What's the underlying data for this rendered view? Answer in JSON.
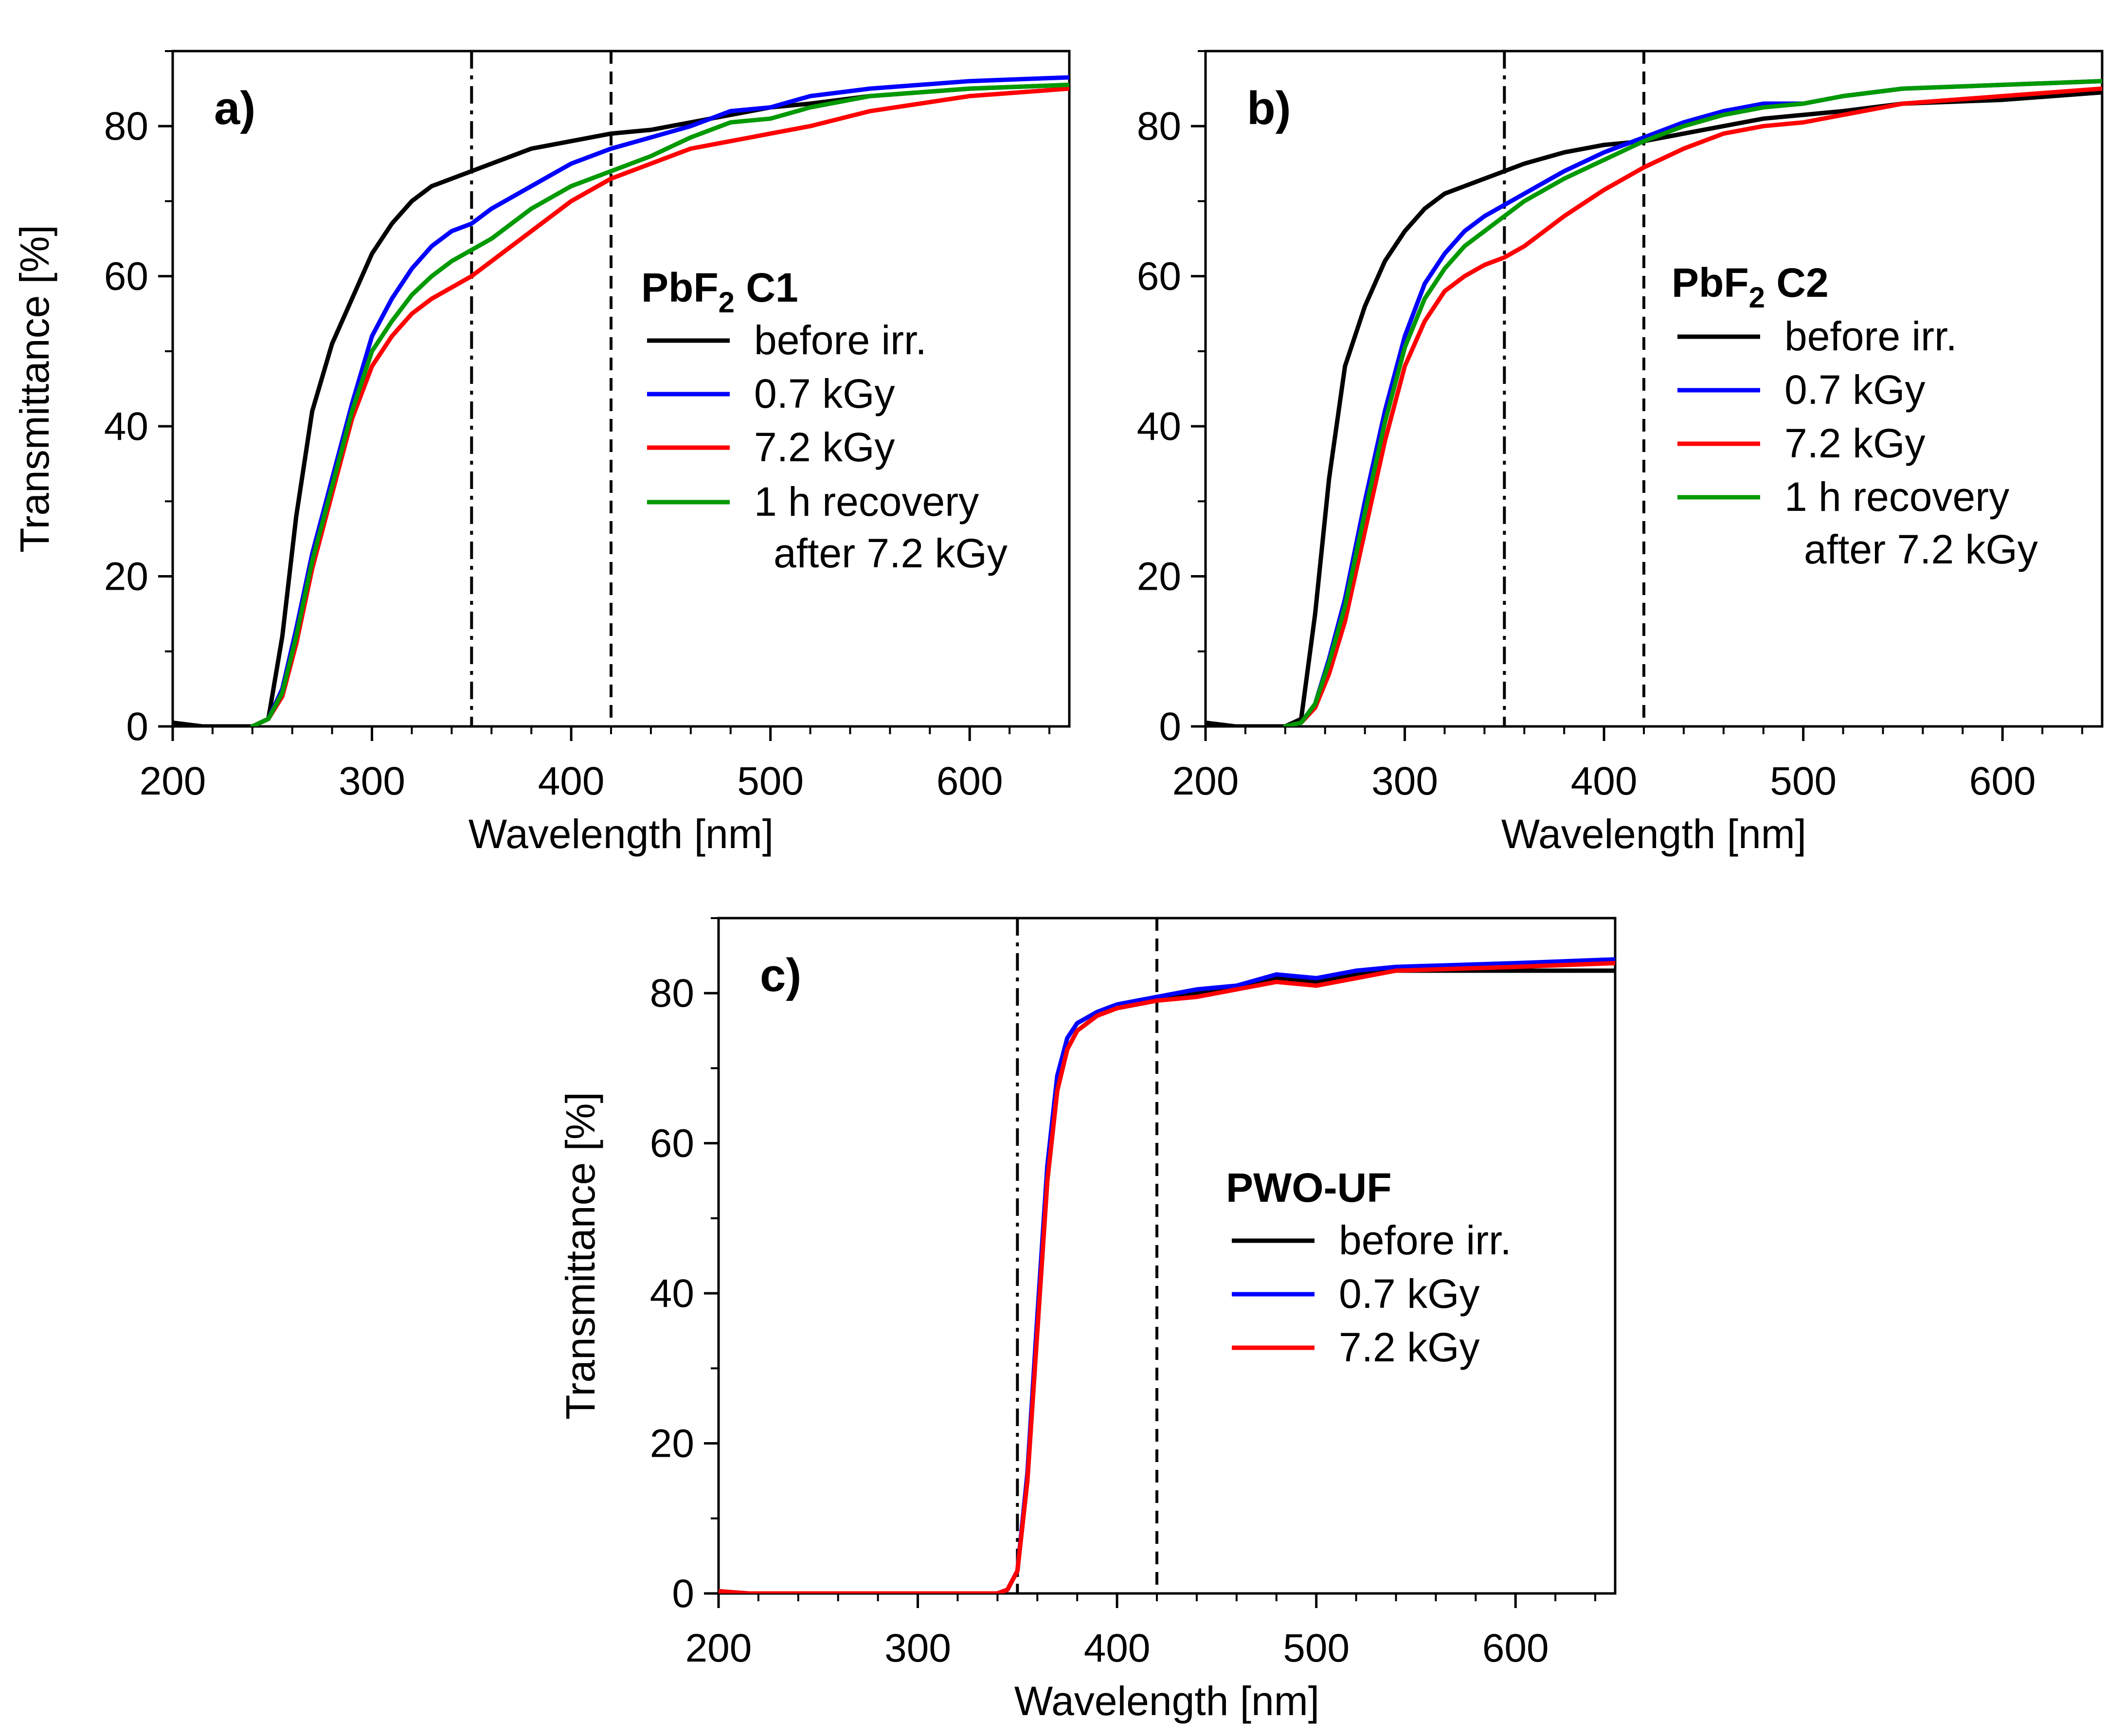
{
  "chart_data": [
    {
      "type": "line",
      "panel": "a)",
      "title_main": "PbF",
      "title_sub": "2",
      "title_rest": " C1",
      "xlabel": "Wavelength [nm]",
      "ylabel": "Transmittance [%]",
      "xlim": [
        200,
        650
      ],
      "ylim": [
        0,
        90
      ],
      "xticks": [
        200,
        300,
        400,
        500,
        600
      ],
      "yticks": [
        0,
        20,
        40,
        60,
        80
      ],
      "vlines": [
        {
          "x": 350,
          "style": "dashdot"
        },
        {
          "x": 420,
          "style": "dashed"
        }
      ],
      "legend": [
        "before irr.",
        "0.7 kGy",
        "7.2 kGy",
        "1 h recovery",
        "after 7.2 kGy"
      ],
      "series": [
        {
          "name": "before irr.",
          "color": "#000000",
          "x": [
            200,
            215,
            240,
            248,
            255,
            262,
            270,
            280,
            290,
            300,
            310,
            320,
            330,
            340,
            350,
            360,
            380,
            400,
            420,
            440,
            460,
            480,
            500,
            520,
            550,
            600,
            650
          ],
          "y": [
            0.5,
            0,
            0,
            1,
            12,
            28,
            42,
            51,
            57,
            63,
            67,
            70,
            72,
            73,
            74,
            75,
            77,
            78,
            79,
            79.5,
            80.5,
            81.5,
            82.5,
            83,
            84,
            85,
            85.5
          ]
        },
        {
          "name": "0.7 kGy",
          "color": "#0000ff",
          "x": [
            240,
            248,
            255,
            262,
            270,
            280,
            290,
            300,
            310,
            320,
            330,
            340,
            350,
            360,
            380,
            400,
            420,
            440,
            460,
            480,
            500,
            520,
            550,
            600,
            650
          ],
          "y": [
            0,
            1,
            5,
            13,
            23,
            33,
            43,
            52,
            57,
            61,
            64,
            66,
            67,
            69,
            72,
            75,
            77,
            78.5,
            80,
            82,
            82.5,
            84,
            85,
            86,
            86.5
          ]
        },
        {
          "name": "7.2 kGy",
          "color": "#ff0000",
          "x": [
            240,
            248,
            255,
            262,
            270,
            280,
            290,
            300,
            310,
            320,
            330,
            340,
            350,
            360,
            380,
            400,
            420,
            440,
            460,
            480,
            500,
            520,
            550,
            600,
            650
          ],
          "y": [
            0,
            1,
            4,
            11,
            21,
            31,
            41,
            48,
            52,
            55,
            57,
            58.5,
            60,
            62,
            66,
            70,
            73,
            75,
            77,
            78,
            79,
            80,
            82,
            84,
            85
          ]
        },
        {
          "name": "1 h recovery after 7.2 kGy",
          "color": "#009900",
          "x": [
            240,
            248,
            255,
            262,
            270,
            280,
            290,
            300,
            310,
            320,
            330,
            340,
            350,
            360,
            380,
            400,
            420,
            440,
            460,
            480,
            500,
            520,
            550,
            600,
            650
          ],
          "y": [
            0,
            1,
            4.5,
            12,
            22,
            32,
            42,
            50,
            54,
            57.5,
            60,
            62,
            63.5,
            65,
            69,
            72,
            74,
            76,
            78.5,
            80.5,
            81,
            82.5,
            84,
            85,
            85.5
          ]
        }
      ]
    },
    {
      "type": "line",
      "panel": "b)",
      "title_main": "PbF",
      "title_sub": "2",
      "title_rest": " C2",
      "xlabel": "Wavelength [nm]",
      "ylabel": "",
      "xlim": [
        200,
        650
      ],
      "ylim": [
        0,
        90
      ],
      "xticks": [
        200,
        300,
        400,
        500,
        600
      ],
      "yticks": [
        0,
        20,
        40,
        60,
        80
      ],
      "vlines": [
        {
          "x": 350,
          "style": "dashdot"
        },
        {
          "x": 420,
          "style": "dashed"
        }
      ],
      "legend": [
        "before irr.",
        "0.7 kGy",
        "7.2 kGy",
        "1 h recovery",
        "after 7.2 kGy"
      ],
      "series": [
        {
          "name": "before irr.",
          "color": "#000000",
          "x": [
            200,
            215,
            240,
            248,
            255,
            262,
            270,
            280,
            290,
            300,
            310,
            320,
            330,
            340,
            350,
            360,
            380,
            400,
            420,
            440,
            460,
            480,
            500,
            520,
            550,
            600,
            650
          ],
          "y": [
            0.5,
            0,
            0,
            1,
            15,
            33,
            48,
            56,
            62,
            66,
            69,
            71,
            72,
            73,
            74,
            75,
            76.5,
            77.5,
            78,
            79,
            80,
            81,
            81.5,
            82,
            83,
            83.5,
            84.5
          ]
        },
        {
          "name": "0.7 kGy",
          "color": "#0000ff",
          "x": [
            240,
            248,
            255,
            262,
            270,
            280,
            290,
            300,
            310,
            320,
            330,
            340,
            350,
            360,
            380,
            400,
            420,
            440,
            460,
            480,
            500,
            520,
            550,
            600,
            650
          ],
          "y": [
            0,
            0.5,
            3,
            9,
            17,
            30,
            42,
            52,
            59,
            63,
            66,
            68,
            69.5,
            71,
            74,
            76.5,
            78.5,
            80.5,
            82,
            83,
            83,
            84,
            85,
            85.5,
            86
          ]
        },
        {
          "name": "7.2 kGy",
          "color": "#ff0000",
          "x": [
            240,
            248,
            255,
            262,
            270,
            280,
            290,
            300,
            310,
            320,
            330,
            340,
            350,
            360,
            380,
            400,
            420,
            440,
            460,
            480,
            500,
            520,
            550,
            600,
            650
          ],
          "y": [
            0,
            0.5,
            2.5,
            7,
            14,
            26,
            38,
            48,
            54,
            58,
            60,
            61.5,
            62.5,
            64,
            68,
            71.5,
            74.5,
            77,
            79,
            80,
            80.5,
            81.5,
            83,
            84,
            85
          ]
        },
        {
          "name": "1 h recovery after 7.2 kGy",
          "color": "#009900",
          "x": [
            240,
            248,
            255,
            262,
            270,
            280,
            290,
            300,
            310,
            320,
            330,
            340,
            350,
            360,
            380,
            400,
            420,
            440,
            460,
            480,
            500,
            520,
            550,
            600,
            650
          ],
          "y": [
            0,
            0.5,
            3,
            8.5,
            16,
            28.5,
            40.5,
            50.5,
            57,
            61,
            64,
            66,
            68,
            70,
            73,
            75.5,
            78,
            80,
            81.5,
            82.5,
            83,
            84,
            85,
            85.5,
            86
          ]
        }
      ]
    },
    {
      "type": "line",
      "panel": "c)",
      "title_main": "PWO-UF",
      "title_sub": "",
      "title_rest": "",
      "xlabel": "Wavelength [nm]",
      "ylabel": "Transmittance [%]",
      "xlim": [
        200,
        650
      ],
      "ylim": [
        0,
        90
      ],
      "xticks": [
        200,
        300,
        400,
        500,
        600
      ],
      "yticks": [
        0,
        20,
        40,
        60,
        80
      ],
      "vlines": [
        {
          "x": 350,
          "style": "dashdot"
        },
        {
          "x": 420,
          "style": "dashed"
        }
      ],
      "legend": [
        "before irr.",
        "0.7 kGy",
        "7.2 kGy"
      ],
      "series": [
        {
          "name": "before irr.",
          "color": "#000000",
          "x": [
            200,
            215,
            240,
            300,
            340,
            345,
            350,
            355,
            360,
            365,
            370,
            375,
            380,
            390,
            400,
            420,
            440,
            460,
            480,
            500,
            520,
            540,
            600,
            650
          ],
          "y": [
            0.3,
            0,
            0,
            0,
            0,
            0.5,
            3,
            15,
            35,
            55,
            67,
            72.5,
            75,
            77,
            78,
            79,
            80,
            80.5,
            82,
            81.5,
            82.5,
            83,
            83,
            83
          ]
        },
        {
          "name": "0.7 kGy",
          "color": "#0000ff",
          "x": [
            200,
            215,
            240,
            300,
            340,
            345,
            350,
            355,
            360,
            365,
            370,
            375,
            380,
            390,
            400,
            420,
            440,
            460,
            480,
            500,
            520,
            540,
            600,
            650
          ],
          "y": [
            0.3,
            0,
            0,
            0,
            0,
            0.5,
            3,
            16,
            37,
            57,
            69,
            74,
            76,
            77.5,
            78.5,
            79.5,
            80.5,
            81,
            82.5,
            82,
            83,
            83.5,
            84,
            84.5
          ]
        },
        {
          "name": "7.2 kGy",
          "color": "#ff0000",
          "x": [
            200,
            215,
            240,
            300,
            340,
            345,
            350,
            355,
            360,
            365,
            370,
            375,
            380,
            390,
            400,
            420,
            440,
            460,
            480,
            500,
            520,
            540,
            600,
            650
          ],
          "y": [
            0.3,
            0,
            0,
            0,
            0,
            0.5,
            3,
            15,
            35,
            55,
            67,
            72.5,
            75,
            77,
            78,
            79,
            79.5,
            80.5,
            81.5,
            81,
            82,
            83,
            83.5,
            84
          ]
        }
      ]
    }
  ]
}
